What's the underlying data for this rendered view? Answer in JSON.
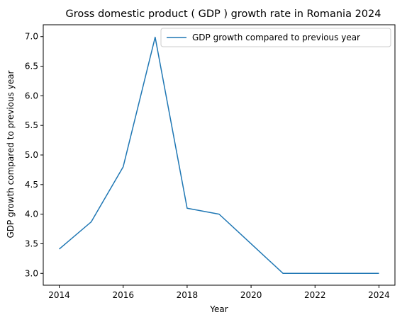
{
  "chart_data": {
    "type": "line",
    "title": "Gross domestic product ( GDP ) growth rate in Romania 2024",
    "xlabel": "Year",
    "ylabel": "GDP growth compared to previous year",
    "x": [
      2014,
      2015,
      2016,
      2017,
      2018,
      2019,
      2020,
      2021,
      2022,
      2023,
      2024
    ],
    "series": [
      {
        "name": "GDP growth compared to previous year",
        "values": [
          3.41,
          3.87,
          4.8,
          6.99,
          4.1,
          4.0,
          3.5,
          3.0,
          3.0,
          3.0,
          3.0
        ],
        "color": "#1f77b4"
      }
    ],
    "xticks": [
      "2014",
      "2016",
      "2018",
      "2020",
      "2022",
      "2024"
    ],
    "yticks": [
      "3.0",
      "3.5",
      "4.0",
      "4.5",
      "5.0",
      "5.5",
      "6.0",
      "6.5",
      "7.0"
    ],
    "xlim": [
      2013.5,
      2024.5
    ],
    "ylim": [
      2.8,
      7.2
    ],
    "grid": false,
    "legend_position": "upper right"
  }
}
